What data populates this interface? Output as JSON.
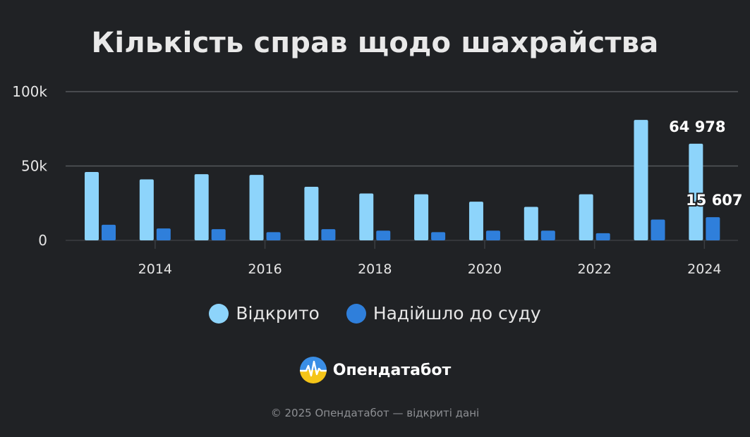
{
  "title": "Кількість справ щодо шахрайства",
  "brand": {
    "name": "Опендатабот",
    "logo_icon": "opendatabot-logo-icon"
  },
  "footer": "© 2025 Опендатабот — відкриті дані",
  "colors": {
    "background": "#202225",
    "series_opened": "#8dd4fb",
    "series_court": "#2f7fdb",
    "grid": "#55585c"
  },
  "chart_data": {
    "type": "bar",
    "title": "Кількість справ щодо шахрайства",
    "xlabel": "",
    "ylabel": "",
    "ylim": [
      0,
      100000
    ],
    "yticks": [
      {
        "value": 0,
        "label": "0"
      },
      {
        "value": 50000,
        "label": "50k"
      },
      {
        "value": 100000,
        "label": "100k"
      }
    ],
    "categories": [
      2013,
      2014,
      2015,
      2016,
      2017,
      2018,
      2019,
      2020,
      2021,
      2022,
      2023,
      2024
    ],
    "xtick_labels": [
      "2014",
      "2016",
      "2018",
      "2020",
      "2022",
      "2024"
    ],
    "grid": true,
    "legend_position": "bottom",
    "series": [
      {
        "name": "Відкрито",
        "values": [
          46000,
          41000,
          44500,
          44000,
          36000,
          31500,
          31000,
          26000,
          22500,
          31000,
          81000,
          64978
        ]
      },
      {
        "name": "Надійшло до суду",
        "values": [
          10500,
          8000,
          7500,
          5500,
          7500,
          6500,
          5500,
          6500,
          6500,
          4800,
          14000,
          15607
        ]
      }
    ],
    "data_labels": [
      {
        "series": 0,
        "category": 2024,
        "text": "64 978"
      },
      {
        "series": 1,
        "category": 2024,
        "text": "15 607"
      }
    ]
  }
}
